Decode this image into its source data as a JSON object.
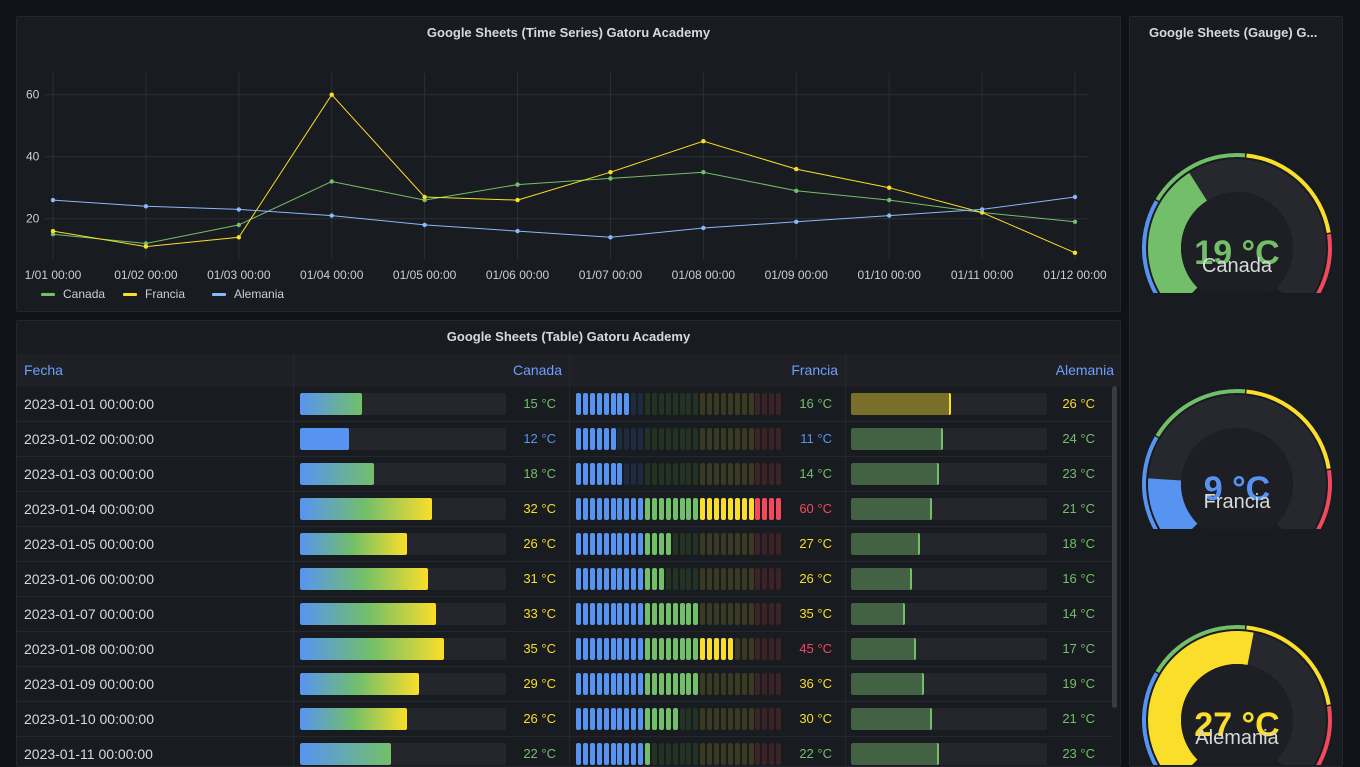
{
  "timeseries": {
    "title": "Google Sheets (Time Series) Gatoru Academy",
    "y_ticks": [
      "60",
      "40",
      "20"
    ],
    "x_ticks": [
      "1/01 00:00",
      "01/02 00:00",
      "01/03 00:00",
      "01/04 00:00",
      "01/05 00:00",
      "01/06 00:00",
      "01/07 00:00",
      "01/08 00:00",
      "01/09 00:00",
      "01/10 00:00",
      "01/11 00:00",
      "01/12 00:00"
    ],
    "legend": [
      {
        "name": "Canada",
        "color": "#73bf69"
      },
      {
        "name": "Francia",
        "color": "#fade2a"
      },
      {
        "name": "Alemania",
        "color": "#8ab8ff"
      }
    ]
  },
  "chart_data": {
    "type": "line",
    "title": "Google Sheets (Time Series) Gatoru Academy",
    "x": [
      "1/01 00:00",
      "01/02 00:00",
      "01/03 00:00",
      "01/04 00:00",
      "01/05 00:00",
      "01/06 00:00",
      "01/07 00:00",
      "01/08 00:00",
      "01/09 00:00",
      "01/10 00:00",
      "01/11 00:00",
      "01/12 00:00"
    ],
    "ylim": [
      7,
      67
    ],
    "y_ticks": [
      20,
      40,
      60
    ],
    "series": [
      {
        "name": "Canada",
        "color": "#73bf69",
        "values": [
          15,
          12,
          18,
          32,
          26,
          31,
          33,
          35,
          29,
          26,
          22,
          19
        ]
      },
      {
        "name": "Francia",
        "color": "#fade2a",
        "values": [
          16,
          11,
          14,
          60,
          27,
          26,
          35,
          45,
          36,
          30,
          22,
          9
        ]
      },
      {
        "name": "Alemania",
        "color": "#8ab8ff",
        "values": [
          26,
          24,
          23,
          21,
          18,
          16,
          14,
          17,
          19,
          21,
          23,
          27
        ]
      }
    ]
  },
  "table": {
    "title": "Google Sheets (Table) Gatoru Academy",
    "headers": {
      "fecha": "Fecha",
      "canada": "Canada",
      "francia": "Francia",
      "alemania": "Alemania"
    },
    "rows": [
      {
        "fecha": "2023-01-01 00:00:00",
        "canada": 15,
        "canada_text": "15 °C",
        "francia": 16,
        "francia_text": "16 °C",
        "alemania": 26,
        "alemania_text": "26 °C"
      },
      {
        "fecha": "2023-01-02 00:00:00",
        "canada": 12,
        "canada_text": "12 °C",
        "francia": 11,
        "francia_text": "11 °C",
        "alemania": 24,
        "alemania_text": "24 °C"
      },
      {
        "fecha": "2023-01-03 00:00:00",
        "canada": 18,
        "canada_text": "18 °C",
        "francia": 14,
        "francia_text": "14 °C",
        "alemania": 23,
        "alemania_text": "23 °C"
      },
      {
        "fecha": "2023-01-04 00:00:00",
        "canada": 32,
        "canada_text": "32 °C",
        "francia": 60,
        "francia_text": "60 °C",
        "alemania": 21,
        "alemania_text": "21 °C"
      },
      {
        "fecha": "2023-01-05 00:00:00",
        "canada": 26,
        "canada_text": "26 °C",
        "francia": 27,
        "francia_text": "27 °C",
        "alemania": 18,
        "alemania_text": "18 °C"
      },
      {
        "fecha": "2023-01-06 00:00:00",
        "canada": 31,
        "canada_text": "31 °C",
        "francia": 26,
        "francia_text": "26 °C",
        "alemania": 16,
        "alemania_text": "16 °C"
      },
      {
        "fecha": "2023-01-07 00:00:00",
        "canada": 33,
        "canada_text": "33 °C",
        "francia": 35,
        "francia_text": "35 °C",
        "alemania": 14,
        "alemania_text": "14 °C"
      },
      {
        "fecha": "2023-01-08 00:00:00",
        "canada": 35,
        "canada_text": "35 °C",
        "francia": 45,
        "francia_text": "45 °C",
        "alemania": 17,
        "alemania_text": "17 °C"
      },
      {
        "fecha": "2023-01-09 00:00:00",
        "canada": 29,
        "canada_text": "29 °C",
        "francia": 36,
        "francia_text": "36 °C",
        "alemania": 19,
        "alemania_text": "19 °C"
      },
      {
        "fecha": "2023-01-10 00:00:00",
        "canada": 26,
        "canada_text": "26 °C",
        "francia": 30,
        "francia_text": "30 °C",
        "alemania": 21,
        "alemania_text": "21 °C"
      },
      {
        "fecha": "2023-01-11 00:00:00",
        "canada": 22,
        "canada_text": "22 °C",
        "francia": 22,
        "francia_text": "22 °C",
        "alemania": 23,
        "alemania_text": "23 °C"
      }
    ]
  },
  "gauges": {
    "title": "Google Sheets (Gauge) G...",
    "items": [
      {
        "name": "Canada",
        "value": 19,
        "value_text": "19 °C",
        "color": "#73bf69"
      },
      {
        "name": "Francia",
        "value": 9,
        "value_text": "9 °C",
        "color": "#5794f2"
      },
      {
        "name": "Alemania",
        "value": 27,
        "value_text": "27 °C",
        "color": "#fade2a"
      }
    ]
  },
  "colors": {
    "blue": "#5794f2",
    "green": "#73bf69",
    "yellow": "#fade2a",
    "red": "#f2495c",
    "text": "#d8d9da",
    "header": "#6e9fff"
  }
}
